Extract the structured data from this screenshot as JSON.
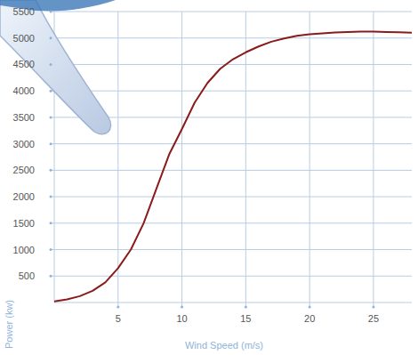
{
  "chart_data": {
    "type": "line",
    "x_label": "Wind Speed (m/s)",
    "y_label": "Power (kw)",
    "x": [
      0,
      1,
      2,
      3,
      4,
      5,
      6,
      7,
      8,
      9,
      10,
      11,
      12,
      13,
      14,
      15,
      16,
      17,
      18,
      19,
      20,
      21,
      22,
      23,
      24,
      25,
      26,
      27,
      28
    ],
    "values": [
      20,
      60,
      120,
      220,
      380,
      650,
      1000,
      1500,
      2150,
      2800,
      3280,
      3780,
      4150,
      4420,
      4600,
      4730,
      4840,
      4930,
      4990,
      5040,
      5070,
      5090,
      5105,
      5115,
      5120,
      5120,
      5115,
      5110,
      5100
    ],
    "color": "#8b1a1a",
    "xlim": [
      0,
      28
    ],
    "xticks": [
      5,
      10,
      15,
      20,
      25
    ],
    "ylim": [
      0,
      5500
    ],
    "yticks": [
      500,
      1000,
      1500,
      2000,
      2500,
      3000,
      3500,
      4000,
      4500,
      5000,
      5500
    ],
    "grid": true
  }
}
